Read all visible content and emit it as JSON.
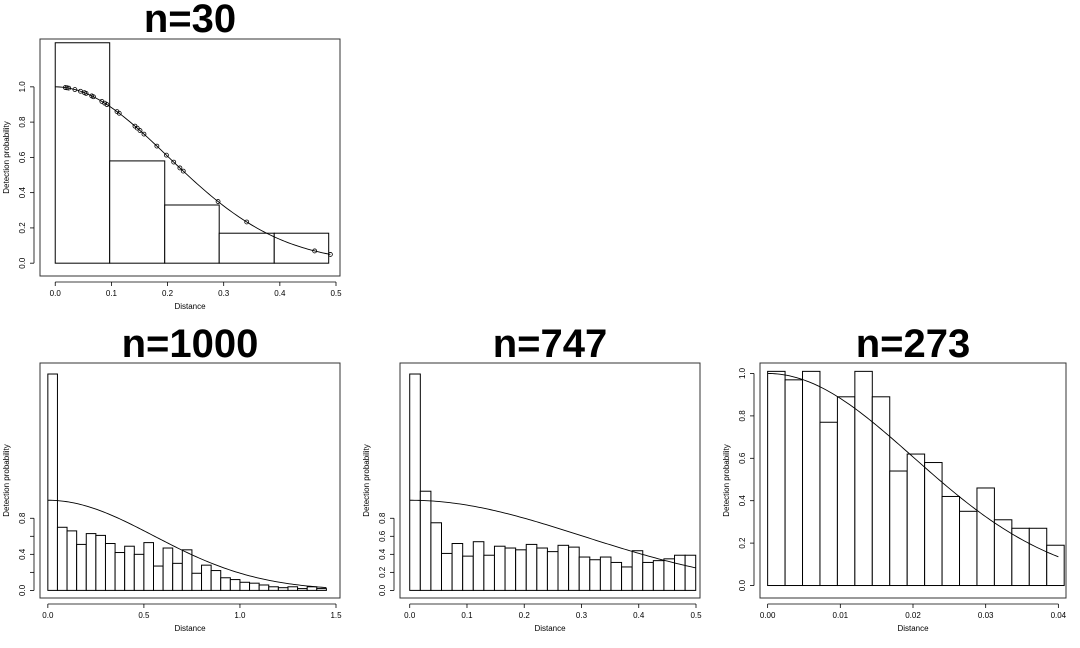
{
  "chart_data": [
    {
      "type": "bar",
      "title": "n=30",
      "xlabel": "Distance",
      "ylabel": "Detection probability",
      "xlim": [
        -0.02,
        0.5
      ],
      "ylim": [
        -0.05,
        1.26
      ],
      "x_ticks": [
        0.0,
        0.1,
        0.2,
        0.3,
        0.4,
        0.5
      ],
      "x_tick_labels": [
        "0.0",
        "0.1",
        "0.2",
        "0.3",
        "0.4",
        "0.5"
      ],
      "y_ticks": [
        0.0,
        0.2,
        0.4,
        0.6,
        0.8,
        1.0
      ],
      "y_tick_labels": [
        "0.0",
        "0.2",
        "0.4",
        "0.6",
        "0.8",
        "1.0"
      ],
      "bin_edges": [
        0.0,
        0.097,
        0.195,
        0.292,
        0.39,
        0.487
      ],
      "values": [
        1.25,
        0.58,
        0.33,
        0.17,
        0.17
      ],
      "curve": {
        "sigma": 0.2,
        "x_max": 0.49
      },
      "points_x": [
        0.018,
        0.021,
        0.024,
        0.035,
        0.045,
        0.052,
        0.055,
        0.065,
        0.068,
        0.083,
        0.088,
        0.092,
        0.11,
        0.114,
        0.142,
        0.146,
        0.151,
        0.158,
        0.181,
        0.198,
        0.211,
        0.222,
        0.228,
        0.29,
        0.341,
        0.462,
        0.49
      ]
    },
    {
      "type": "bar",
      "title": "n=1000",
      "xlabel": "Distance",
      "ylabel": "Detection probability",
      "xlim": [
        -0.02,
        1.5
      ],
      "ylim": [
        -0.04,
        2.5
      ],
      "x_ticks": [
        0.0,
        0.5,
        1.0,
        1.5
      ],
      "x_tick_labels": [
        "0.0",
        "0.5",
        "1.0",
        "1.5"
      ],
      "y_ticks": [
        0.0,
        0.2,
        0.4,
        0.6,
        0.8
      ],
      "y_tick_labels": [
        "0.0",
        "",
        "0.4",
        "",
        "0.8"
      ],
      "bin_edges": [
        0.0,
        0.05,
        0.1,
        0.15,
        0.2,
        0.25,
        0.3,
        0.35,
        0.4,
        0.45,
        0.5,
        0.55,
        0.6,
        0.65,
        0.7,
        0.75,
        0.8,
        0.85,
        0.9,
        0.95,
        1.0,
        1.05,
        1.1,
        1.15,
        1.2,
        1.25,
        1.3,
        1.35,
        1.4,
        1.45
      ],
      "values": [
        2.4,
        0.7,
        0.66,
        0.51,
        0.63,
        0.61,
        0.52,
        0.42,
        0.49,
        0.4,
        0.53,
        0.27,
        0.47,
        0.3,
        0.45,
        0.19,
        0.28,
        0.22,
        0.14,
        0.12,
        0.09,
        0.08,
        0.06,
        0.04,
        0.03,
        0.04,
        0.02,
        0.04,
        0.02
      ],
      "curve": {
        "sigma": 0.55,
        "x_max": 1.45
      }
    },
    {
      "type": "bar",
      "title": "n=747",
      "xlabel": "Distance",
      "ylabel": "Detection probability",
      "xlim": [
        -0.01,
        0.5
      ],
      "ylim": [
        -0.04,
        2.5
      ],
      "x_ticks": [
        0.0,
        0.1,
        0.2,
        0.3,
        0.4,
        0.5
      ],
      "x_tick_labels": [
        "0.0",
        "0.1",
        "0.2",
        "0.3",
        "0.4",
        "0.5"
      ],
      "y_ticks": [
        0.0,
        0.2,
        0.4,
        0.6,
        0.8
      ],
      "y_tick_labels": [
        "0.0",
        "0.2",
        "0.4",
        "0.6",
        "0.8"
      ],
      "bin_edges": [
        0.0,
        0.0185,
        0.037,
        0.0555,
        0.074,
        0.0925,
        0.111,
        0.1295,
        0.148,
        0.1665,
        0.185,
        0.2035,
        0.222,
        0.2405,
        0.259,
        0.2775,
        0.296,
        0.3145,
        0.333,
        0.3515,
        0.37,
        0.3885,
        0.407,
        0.4255,
        0.444,
        0.4625,
        0.481,
        0.4995
      ],
      "values": [
        2.4,
        1.1,
        0.75,
        0.41,
        0.52,
        0.38,
        0.54,
        0.39,
        0.49,
        0.47,
        0.45,
        0.51,
        0.47,
        0.43,
        0.5,
        0.48,
        0.37,
        0.34,
        0.37,
        0.31,
        0.26,
        0.44,
        0.31,
        0.33,
        0.35,
        0.39,
        0.39
      ],
      "curve": {
        "sigma": 0.3,
        "x_max": 0.5
      }
    },
    {
      "type": "bar",
      "title": "n=273",
      "xlabel": "Distance",
      "ylabel": "Detection probability",
      "xlim": [
        -0.0005,
        0.0405
      ],
      "ylim": [
        -0.04,
        1.04
      ],
      "x_ticks": [
        0.0,
        0.01,
        0.02,
        0.03,
        0.04
      ],
      "x_tick_labels": [
        "0.00",
        "0.01",
        "0.02",
        "0.03",
        "0.04"
      ],
      "y_ticks": [
        0.0,
        0.2,
        0.4,
        0.6,
        0.8,
        1.0
      ],
      "y_tick_labels": [
        "0.0",
        "0.2",
        "0.4",
        "0.6",
        "0.8",
        "1.0"
      ],
      "bin_edges": [
        0.0,
        0.0024,
        0.0048,
        0.0072,
        0.0096,
        0.012,
        0.0144,
        0.0168,
        0.0192,
        0.0216,
        0.024,
        0.0264,
        0.0288,
        0.0312,
        0.0336,
        0.036,
        0.0384,
        0.0408
      ],
      "values": [
        1.01,
        0.97,
        1.01,
        0.77,
        0.89,
        1.01,
        0.89,
        0.54,
        0.62,
        0.58,
        0.42,
        0.35,
        0.46,
        0.31,
        0.27,
        0.27,
        0.19
      ],
      "curve": {
        "sigma": 0.02,
        "x_max": 0.04
      }
    }
  ]
}
